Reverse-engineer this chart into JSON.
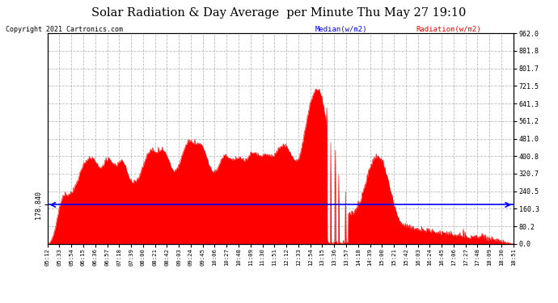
{
  "title": "Solar Radiation & Day Average  per Minute Thu May 27 19:10",
  "copyright": "Copyright 2021 Cartronics.com",
  "legend_median": "Median(w/m2)",
  "legend_radiation": "Radiation(w/m2)",
  "median_value": 178.84,
  "median_label": "178.840",
  "y_min": 0.0,
  "y_max": 962.0,
  "y_ticks_right": [
    0.0,
    80.2,
    160.3,
    240.5,
    320.7,
    400.8,
    481.0,
    561.2,
    641.3,
    721.5,
    801.7,
    881.8,
    962.0
  ],
  "background_color": "#ffffff",
  "fill_color": "#ff0000",
  "line_color": "#ff0000",
  "median_line_color": "#0000ff",
  "grid_color": "#aaaaaa",
  "title_color": "#000000",
  "copyright_color": "#000000",
  "x_tick_labels": [
    "05:12",
    "05:33",
    "05:54",
    "06:15",
    "06:36",
    "06:57",
    "07:18",
    "07:39",
    "08:00",
    "08:21",
    "08:42",
    "09:03",
    "09:24",
    "09:45",
    "10:06",
    "10:27",
    "10:48",
    "11:09",
    "11:30",
    "11:51",
    "12:12",
    "12:33",
    "12:54",
    "13:15",
    "13:36",
    "13:57",
    "14:18",
    "14:39",
    "15:00",
    "15:21",
    "15:42",
    "16:03",
    "16:24",
    "16:45",
    "17:06",
    "17:27",
    "17:48",
    "18:09",
    "18:30",
    "18:51"
  ],
  "num_points": 820
}
